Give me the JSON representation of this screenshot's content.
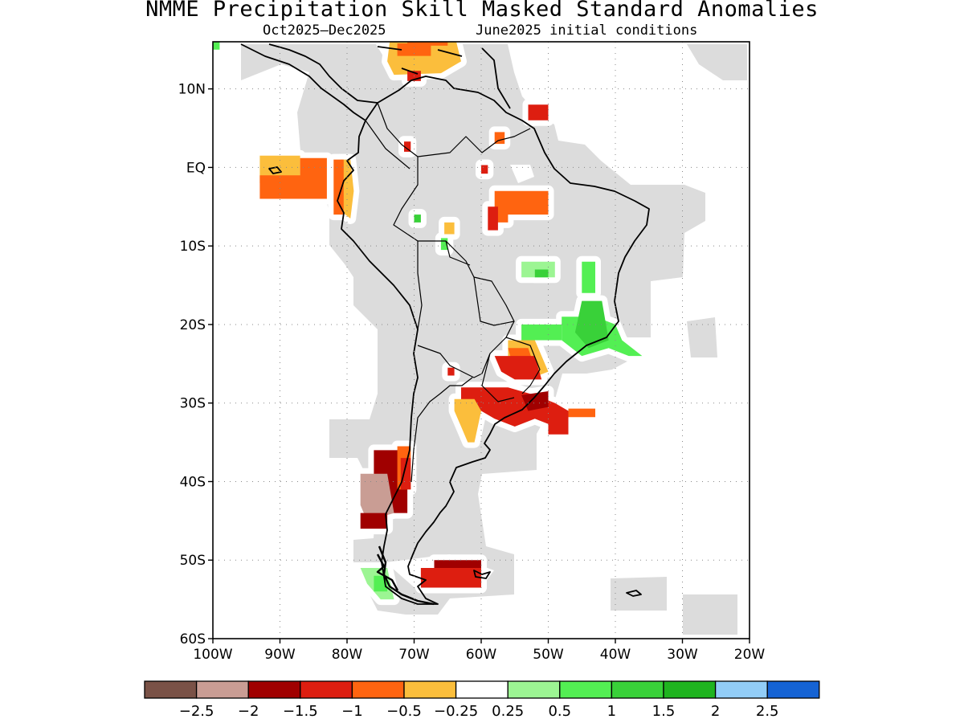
{
  "title": "NMME Precipitation Skill Masked Standard Anomalies",
  "subtitle_left": "Oct2025–Dec2025",
  "subtitle_right": "June2025 initial conditions",
  "map": {
    "lat_ticks": [
      {
        "lat": 10,
        "label": "10N"
      },
      {
        "lat": 0,
        "label": "EQ"
      },
      {
        "lat": -10,
        "label": "10S"
      },
      {
        "lat": -20,
        "label": "20S"
      },
      {
        "lat": -30,
        "label": "30S"
      },
      {
        "lat": -40,
        "label": "40S"
      },
      {
        "lat": -50,
        "label": "50S"
      },
      {
        "lat": -60,
        "label": "60S"
      }
    ],
    "lon_ticks": [
      {
        "lon": -100,
        "label": "100W"
      },
      {
        "lon": -90,
        "label": "90W"
      },
      {
        "lon": -80,
        "label": "80W"
      },
      {
        "lon": -70,
        "label": "70W"
      },
      {
        "lon": -60,
        "label": "60W"
      },
      {
        "lon": -50,
        "label": "50W"
      },
      {
        "lon": -40,
        "label": "40W"
      },
      {
        "lon": -30,
        "label": "30W"
      },
      {
        "lon": -20,
        "label": "20W"
      }
    ],
    "lon_range": [
      -100,
      -20
    ],
    "lat_range": [
      -60,
      16
    ],
    "grid": "dotted",
    "masked_color": "#dcdcdc",
    "colors": {
      "m25": "#7a5247",
      "m2": "#c99d94",
      "m15": "#a00000",
      "m1": "#dd1e10",
      "m05": "#ff6410",
      "m025": "#fbbe3c",
      "p025": "#9cf593",
      "p05": "#53ef53",
      "p1": "#39d139",
      "p15": "#1fb41f"
    },
    "anomaly_regions": [
      {
        "level": "m025",
        "points": [
          [
            -73.5,
            17
          ],
          [
            -64,
            17
          ],
          [
            -63,
            13.5
          ],
          [
            -66,
            12
          ],
          [
            -73,
            11.8
          ],
          [
            -74,
            13.5
          ]
        ]
      },
      {
        "level": "m05",
        "points": [
          [
            -72.5,
            15.8
          ],
          [
            -67.5,
            15.8
          ],
          [
            -67.5,
            14.2
          ],
          [
            -72.5,
            14.2
          ]
        ]
      },
      {
        "level": "m05",
        "points": [
          [
            -71,
            17
          ],
          [
            -65,
            17
          ],
          [
            -65,
            15.5
          ],
          [
            -71,
            15.5
          ]
        ]
      },
      {
        "level": "m1",
        "points": [
          [
            -71,
            12.3
          ],
          [
            -69,
            12.3
          ],
          [
            -69,
            11
          ],
          [
            -71,
            11
          ]
        ]
      },
      {
        "level": "m1",
        "points": [
          [
            -53,
            8
          ],
          [
            -50,
            8
          ],
          [
            -50,
            6
          ],
          [
            -53,
            6
          ]
        ]
      },
      {
        "level": "m05",
        "points": [
          [
            -58,
            4.5
          ],
          [
            -56.5,
            4.5
          ],
          [
            -56.5,
            3
          ],
          [
            -58,
            3
          ]
        ]
      },
      {
        "level": "m1",
        "points": [
          [
            -71.5,
            3.3
          ],
          [
            -70.5,
            3.3
          ],
          [
            -70.5,
            2
          ],
          [
            -71.5,
            2
          ]
        ]
      },
      {
        "level": "m1",
        "points": [
          [
            -60,
            0.3
          ],
          [
            -59,
            0.3
          ],
          [
            -59,
            -0.8
          ],
          [
            -60,
            -0.8
          ]
        ]
      },
      {
        "level": "m025",
        "points": [
          [
            -93,
            1.5
          ],
          [
            -87,
            1.5
          ],
          [
            -87,
            -2
          ],
          [
            -93,
            -2
          ]
        ]
      },
      {
        "level": "m05",
        "points": [
          [
            -93,
            -1
          ],
          [
            -87,
            -1
          ],
          [
            -87,
            1.2
          ],
          [
            -83,
            1.2
          ],
          [
            -83,
            -4
          ],
          [
            -93,
            -4
          ]
        ]
      },
      {
        "level": "m025",
        "points": [
          [
            -81,
            1
          ],
          [
            -79.5,
            1
          ],
          [
            -79,
            -3
          ],
          [
            -79.5,
            -6.5
          ],
          [
            -81,
            -5.5
          ]
        ]
      },
      {
        "level": "m05",
        "points": [
          [
            -82,
            1
          ],
          [
            -80.5,
            1
          ],
          [
            -80.5,
            -6
          ],
          [
            -82,
            -6
          ]
        ]
      },
      {
        "level": "m05",
        "points": [
          [
            -58,
            -3
          ],
          [
            -50,
            -3
          ],
          [
            -50,
            -6
          ],
          [
            -56,
            -6
          ],
          [
            -56,
            -7
          ],
          [
            -58,
            -7
          ]
        ]
      },
      {
        "level": "m1",
        "points": [
          [
            -59,
            -5
          ],
          [
            -57.5,
            -5
          ],
          [
            -57.5,
            -8
          ],
          [
            -59,
            -8
          ]
        ]
      },
      {
        "level": "m025",
        "points": [
          [
            -65.5,
            -7
          ],
          [
            -64,
            -7
          ],
          [
            -64,
            -8.5
          ],
          [
            -65.5,
            -8.5
          ]
        ]
      },
      {
        "level": "m025",
        "points": [
          [
            -56,
            -22
          ],
          [
            -52,
            -22
          ],
          [
            -51,
            -24
          ],
          [
            -50,
            -26
          ],
          [
            -53,
            -27
          ],
          [
            -56,
            -25
          ]
        ]
      },
      {
        "level": "m05",
        "points": [
          [
            -56,
            -23
          ],
          [
            -53,
            -23
          ],
          [
            -52,
            -25.5
          ],
          [
            -55,
            -26
          ]
        ]
      },
      {
        "level": "m1",
        "points": [
          [
            -58,
            -24
          ],
          [
            -52,
            -24
          ],
          [
            -51,
            -27
          ],
          [
            -55,
            -27
          ],
          [
            -57,
            -26
          ]
        ]
      },
      {
        "level": "m1",
        "points": [
          [
            -63,
            -28
          ],
          [
            -56,
            -28
          ],
          [
            -52,
            -29
          ],
          [
            -49,
            -30
          ],
          [
            -47,
            -31
          ],
          [
            -49,
            -33
          ],
          [
            -52,
            -32
          ],
          [
            -55,
            -33
          ],
          [
            -58,
            -32
          ],
          [
            -60,
            -31
          ],
          [
            -63,
            -30
          ]
        ]
      },
      {
        "level": "m025",
        "points": [
          [
            -64,
            -29.5
          ],
          [
            -61,
            -29.5
          ],
          [
            -60,
            -31
          ],
          [
            -61,
            -35
          ],
          [
            -62,
            -35
          ],
          [
            -63,
            -33
          ],
          [
            -64,
            -31
          ]
        ]
      },
      {
        "level": "m15",
        "points": [
          [
            -54,
            -29
          ],
          [
            -50,
            -28.5
          ],
          [
            -50,
            -30.5
          ],
          [
            -53,
            -31
          ]
        ]
      },
      {
        "level": "m1",
        "points": [
          [
            -50,
            -31
          ],
          [
            -47,
            -31
          ],
          [
            -47,
            -34
          ],
          [
            -50,
            -34
          ]
        ]
      },
      {
        "level": "m05",
        "points": [
          [
            -47,
            -30.7
          ],
          [
            -43,
            -30.7
          ],
          [
            -43,
            -31.8
          ],
          [
            -47,
            -31.8
          ]
        ]
      },
      {
        "level": "m1",
        "points": [
          [
            -65,
            -25.5
          ],
          [
            -64,
            -25.5
          ],
          [
            -64,
            -26.5
          ],
          [
            -65,
            -26.5
          ]
        ]
      },
      {
        "level": "m15",
        "points": [
          [
            -76,
            -36
          ],
          [
            -71,
            -36
          ],
          [
            -71,
            -44
          ],
          [
            -76,
            -44
          ]
        ]
      },
      {
        "level": "m05",
        "points": [
          [
            -72.5,
            -35.5
          ],
          [
            -70.5,
            -35.5
          ],
          [
            -70.5,
            -41
          ],
          [
            -72.5,
            -41
          ]
        ]
      },
      {
        "level": "m1",
        "points": [
          [
            -72,
            -37
          ],
          [
            -70.5,
            -37
          ],
          [
            -70.5,
            -41
          ],
          [
            -72,
            -41
          ]
        ]
      },
      {
        "level": "m2",
        "points": [
          [
            -78,
            -39
          ],
          [
            -74,
            -39
          ],
          [
            -73,
            -44
          ],
          [
            -77,
            -45
          ],
          [
            -78,
            -43
          ]
        ]
      },
      {
        "level": "m15",
        "points": [
          [
            -78,
            -44
          ],
          [
            -74,
            -44
          ],
          [
            -74,
            -46
          ],
          [
            -78,
            -46
          ]
        ]
      },
      {
        "level": "m15",
        "points": [
          [
            -67,
            -50
          ],
          [
            -60,
            -50
          ],
          [
            -60,
            -53
          ],
          [
            -67,
            -53
          ]
        ]
      },
      {
        "level": "m1",
        "points": [
          [
            -69,
            -51
          ],
          [
            -60,
            -51
          ],
          [
            -60,
            -53.5
          ],
          [
            -69,
            -53.5
          ]
        ]
      },
      {
        "level": "p05",
        "points": [
          [
            -100,
            16
          ],
          [
            -99,
            16
          ],
          [
            -99,
            15
          ],
          [
            -100,
            15
          ]
        ]
      },
      {
        "level": "p025",
        "points": [
          [
            -54,
            -12
          ],
          [
            -49,
            -12
          ],
          [
            -49,
            -14
          ],
          [
            -54,
            -14
          ]
        ]
      },
      {
        "level": "p1",
        "points": [
          [
            -52,
            -13
          ],
          [
            -50,
            -13
          ],
          [
            -50,
            -14
          ],
          [
            -52,
            -14
          ]
        ]
      },
      {
        "level": "p05",
        "points": [
          [
            -45,
            -12
          ],
          [
            -43,
            -12
          ],
          [
            -43,
            -16
          ],
          [
            -45,
            -16
          ]
        ]
      },
      {
        "level": "p05",
        "points": [
          [
            -48,
            -19
          ],
          [
            -43,
            -19
          ],
          [
            -40,
            -20
          ],
          [
            -39,
            -22
          ],
          [
            -36,
            -24
          ],
          [
            -38,
            -24
          ],
          [
            -41,
            -23
          ],
          [
            -45,
            -24
          ],
          [
            -48,
            -22
          ]
        ]
      },
      {
        "level": "p1",
        "points": [
          [
            -45,
            -17
          ],
          [
            -42,
            -17
          ],
          [
            -41,
            -22
          ],
          [
            -44,
            -23
          ],
          [
            -46,
            -21
          ]
        ]
      },
      {
        "level": "p05",
        "points": [
          [
            -54,
            -20
          ],
          [
            -48,
            -20
          ],
          [
            -48,
            -22
          ],
          [
            -54,
            -22
          ]
        ]
      },
      {
        "level": "p1",
        "points": [
          [
            -70,
            -6
          ],
          [
            -69,
            -6
          ],
          [
            -69,
            -7
          ],
          [
            -70,
            -7
          ]
        ]
      },
      {
        "level": "p05",
        "points": [
          [
            -66,
            -9
          ],
          [
            -65,
            -9
          ],
          [
            -65,
            -10.5
          ],
          [
            -66,
            -10.5
          ]
        ]
      },
      {
        "level": "p025",
        "points": [
          [
            -78,
            -51
          ],
          [
            -74,
            -51
          ],
          [
            -73,
            -55
          ],
          [
            -75,
            -55
          ],
          [
            -77,
            -53
          ]
        ]
      },
      {
        "level": "p05",
        "points": [
          [
            -76,
            -52
          ],
          [
            -74,
            -52
          ],
          [
            -74,
            -54
          ],
          [
            -76,
            -54
          ]
        ]
      }
    ]
  },
  "colorbar": {
    "colors": [
      "#7a5247",
      "#c99d94",
      "#a00000",
      "#dd1e10",
      "#ff6410",
      "#fbbe3c",
      "#ffffff",
      "#9cf593",
      "#53ef53",
      "#39d139",
      "#1fb41f",
      "#92cdf7",
      "#1563d4"
    ],
    "labels": [
      "−2.5",
      "−2",
      "−1.5",
      "−1",
      "−0.5",
      "−0.25",
      "0.25",
      "0.5",
      "1",
      "1.5",
      "2",
      "2.5"
    ]
  }
}
